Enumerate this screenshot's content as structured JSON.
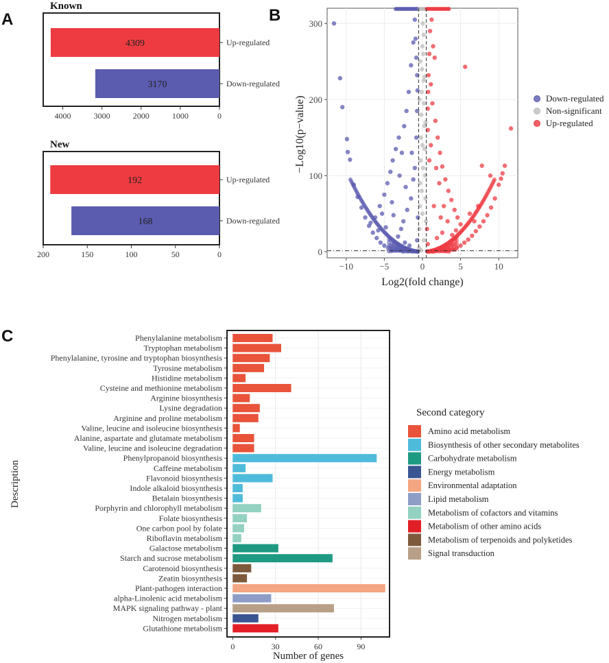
{
  "panel_letters": {
    "a": "A",
    "b": "B",
    "c": "C"
  },
  "colors": {
    "up": "#ee3b41",
    "down": "#5b5bb0",
    "nonsig": "#bdbdbd",
    "grid": "#ececec",
    "frame": "#222222"
  },
  "chart_data": [
    {
      "id": "known",
      "type": "bar",
      "orientation": "horizontal-reversed",
      "title": "Known",
      "categories": [
        "Up-regulated",
        "Down-regulated"
      ],
      "values": [
        4309,
        3170
      ],
      "value_labels": [
        "4309",
        "3170"
      ],
      "xlim": [
        4500,
        0
      ],
      "xticks": [
        4000,
        3000,
        2000,
        1000,
        0
      ],
      "xtick_labels": [
        "4000",
        "3000",
        "2000",
        "1000",
        "0"
      ]
    },
    {
      "id": "new",
      "type": "bar",
      "orientation": "horizontal-reversed",
      "title": "New",
      "categories": [
        "Up-regulated",
        "Down-regulated"
      ],
      "values": [
        192,
        168
      ],
      "value_labels": [
        "192",
        "168"
      ],
      "xlim": [
        200,
        0
      ],
      "xticks": [
        200,
        150,
        100,
        50,
        0
      ],
      "xtick_labels": [
        "200",
        "150",
        "100",
        "50",
        "0"
      ]
    },
    {
      "id": "volcano",
      "type": "scatter",
      "xlabel": "Log2(fold change)",
      "ylabel": "−Log10(p−value)",
      "xlim": [
        -12.5,
        12.5
      ],
      "ylim": [
        -8,
        320
      ],
      "xticks": [
        -10,
        -5,
        0,
        5,
        10
      ],
      "xtick_labels": [
        "−10",
        "−5",
        "0",
        "5",
        "10"
      ],
      "yticks": [
        0,
        100,
        200,
        300
      ],
      "ytick_labels": [
        "0",
        "100",
        "200",
        "300"
      ],
      "thresholds": {
        "x": [
          -0.5,
          0.5
        ],
        "y": 1.3
      },
      "legend": {
        "position": "right",
        "entries": [
          "Down-regulated",
          "Non-significant",
          "Up-regulated"
        ]
      },
      "series": [
        {
          "name": "Down-regulated",
          "points": [
            [
              -11.6,
              300
            ],
            [
              -10.8,
              228
            ],
            [
              -10.5,
              190
            ],
            [
              -9.9,
              148
            ],
            [
              -9.8,
              131
            ],
            [
              -9.5,
              121
            ],
            [
              -9.0,
              88
            ],
            [
              -8.5,
              72
            ],
            [
              -8.0,
              58
            ],
            [
              -7.5,
              45
            ],
            [
              -7.0,
              34
            ],
            [
              -6.5,
              25
            ],
            [
              -6.0,
              18
            ],
            [
              -5.5,
              12
            ],
            [
              -5.0,
              8
            ],
            [
              -4.5,
              5
            ],
            [
              -4.0,
              3
            ],
            [
              -3.5,
              2
            ],
            [
              -3.0,
              1.5
            ],
            [
              -6.2,
              45
            ],
            [
              -5.6,
              60
            ],
            [
              -5.0,
              75
            ],
            [
              -4.6,
              90
            ],
            [
              -4.2,
              105
            ],
            [
              -3.9,
              120
            ],
            [
              -3.5,
              135
            ],
            [
              -3.1,
              150
            ],
            [
              -2.7,
              130
            ],
            [
              -2.4,
              165
            ],
            [
              -2.1,
              185
            ],
            [
              -1.8,
              210
            ],
            [
              -1.5,
              245
            ],
            [
              -1.2,
              275
            ],
            [
              -1.0,
              305
            ],
            [
              -0.9,
              280
            ],
            [
              -0.8,
              255
            ],
            [
              -0.7,
              232
            ],
            [
              -0.65,
              212
            ],
            [
              -2.5,
              40
            ],
            [
              -2.0,
              55
            ],
            [
              -1.5,
              70
            ],
            [
              -1.2,
              95
            ],
            [
              -3.2,
              20
            ],
            [
              -2.8,
              30
            ],
            [
              -4.8,
              32
            ],
            [
              -5.3,
              50
            ],
            [
              -4.0,
              65
            ],
            [
              -1.0,
              110
            ],
            [
              -0.8,
              150
            ],
            [
              -0.7,
              185
            ],
            [
              -1.4,
              130
            ],
            [
              -3.0,
              100
            ],
            [
              -2.2,
              85
            ],
            [
              -0.6,
              45
            ],
            [
              -0.7,
              15
            ],
            [
              -1.7,
              8
            ],
            [
              -2.3,
              12
            ],
            [
              -3.8,
              48
            ],
            [
              -5.8,
              28
            ],
            [
              -6.8,
              38
            ]
          ]
        },
        {
          "name": "Non-significant",
          "points": [
            [
              -0.45,
              5
            ],
            [
              -0.4,
              30
            ],
            [
              -0.35,
              60
            ],
            [
              -0.3,
              90
            ],
            [
              -0.25,
              120
            ],
            [
              -0.2,
              150
            ],
            [
              -0.15,
              180
            ],
            [
              -0.1,
              210
            ],
            [
              -0.05,
              240
            ],
            [
              0.0,
              270
            ],
            [
              0.05,
              300
            ],
            [
              0.1,
              260
            ],
            [
              0.15,
              225
            ],
            [
              0.2,
              195
            ],
            [
              0.25,
              165
            ],
            [
              0.3,
              135
            ],
            [
              0.35,
              100
            ],
            [
              0.4,
              70
            ],
            [
              0.45,
              40
            ],
            [
              0.2,
              15
            ],
            [
              -0.2,
              2
            ],
            [
              0.0,
              50
            ],
            [
              -0.1,
              80
            ],
            [
              0.1,
              110
            ],
            [
              0.3,
              230
            ],
            [
              -0.3,
              250
            ],
            [
              0.0,
              140
            ],
            [
              0.4,
              170
            ],
            [
              -0.4,
              200
            ],
            [
              0.15,
              285
            ]
          ]
        },
        {
          "name": "Up-regulated",
          "points": [
            [
              11.6,
              162
            ],
            [
              10.8,
              113
            ],
            [
              10.5,
              103
            ],
            [
              10.3,
              96
            ],
            [
              10.0,
              88
            ],
            [
              9.5,
              70
            ],
            [
              9.0,
              58
            ],
            [
              8.5,
              48
            ],
            [
              8.0,
              40
            ],
            [
              7.5,
              33
            ],
            [
              7.0,
              27
            ],
            [
              6.5,
              21
            ],
            [
              6.0,
              16
            ],
            [
              5.5,
              12
            ],
            [
              5.0,
              8
            ],
            [
              4.5,
              5
            ],
            [
              4.0,
              3
            ],
            [
              3.5,
              2
            ],
            [
              3.0,
              1.5
            ],
            [
              7.8,
              113
            ],
            [
              5.6,
              243
            ],
            [
              1.4,
              270
            ],
            [
              1.6,
              255
            ],
            [
              1.2,
              305
            ],
            [
              1.0,
              290
            ],
            [
              0.9,
              260
            ],
            [
              0.8,
              232
            ],
            [
              0.75,
              210
            ],
            [
              0.7,
              188
            ],
            [
              1.3,
              195
            ],
            [
              1.7,
              172
            ],
            [
              2.0,
              150
            ],
            [
              2.3,
              130
            ],
            [
              2.6,
              112
            ],
            [
              3.0,
              95
            ],
            [
              3.4,
              80
            ],
            [
              3.8,
              68
            ],
            [
              4.2,
              55
            ],
            [
              4.6,
              45
            ],
            [
              5.0,
              36
            ],
            [
              2.2,
              90
            ],
            [
              1.8,
              110
            ],
            [
              1.1,
              140
            ],
            [
              0.7,
              160
            ],
            [
              2.8,
              60
            ],
            [
              3.3,
              40
            ],
            [
              1.5,
              60
            ],
            [
              0.6,
              30
            ],
            [
              0.7,
              10
            ],
            [
              1.9,
              18
            ],
            [
              2.6,
              25
            ],
            [
              3.9,
              22
            ],
            [
              4.4,
              28
            ],
            [
              6.2,
              50
            ],
            [
              6.8,
              40
            ],
            [
              7.3,
              60
            ],
            [
              8.9,
              100
            ],
            [
              1.1,
              220
            ],
            [
              0.9,
              120
            ],
            [
              2.4,
              45
            ]
          ]
        }
      ]
    },
    {
      "id": "kegg",
      "type": "bar",
      "orientation": "horizontal",
      "xlabel": "Number of genes",
      "ylabel": "Description",
      "xlim": [
        -4,
        110
      ],
      "xticks": [
        0,
        30,
        60,
        90
      ],
      "xtick_labels": [
        "0",
        "30",
        "60",
        "90"
      ],
      "legend": {
        "title": "Second category",
        "position": "right",
        "entries": [
          {
            "name": "Amino acid metabolism",
            "color": "#e8533a"
          },
          {
            "name": "Biosynthesis of other secondary metabolites",
            "color": "#4fbbdb"
          },
          {
            "name": "Carbohydrate metabolism",
            "color": "#1f9a82"
          },
          {
            "name": "Energy metabolism",
            "color": "#3a5591"
          },
          {
            "name": "Environmental adaptation",
            "color": "#f4a582"
          },
          {
            "name": "Lipid metabolism",
            "color": "#8d9dc6"
          },
          {
            "name": "Metabolism of cofactors and vitamins",
            "color": "#93d1c1"
          },
          {
            "name": "Metabolism of other amino acids",
            "color": "#e21f26"
          },
          {
            "name": "Metabolism of terpenoids and polyketides",
            "color": "#7e5a3c"
          },
          {
            "name": "Signal transduction",
            "color": "#b8a088"
          }
        ]
      },
      "categories": [
        "Phenylalanine metabolism",
        "Tryptophan metabolism",
        "Phenylalanine, tyrosine and tryptophan biosynthesis",
        "Tyrosine metabolism",
        "Histidine metabolism",
        "Cysteine and methionine metabolism",
        "Arginine biosynthesis",
        "Lysine degradation",
        "Arginine and proline metabolism",
        "Valine, leucine and isoleucine biosynthesis",
        "Alanine, aspartate and glutamate metabolism",
        "Valine, leucine and isoleucine degradation",
        "Phenylpropanoid biosynthesis",
        "Caffeine metabolism",
        "Flavonoid biosynthesis",
        "Indole alkaloid biosynthesis",
        "Betalain biosynthesis",
        "Porphyrin and chlorophyll metabolism",
        "Folate biosynthesis",
        "One carbon pool by folate",
        "Riboflavin metabolism",
        "Galactose metabolism",
        "Starch and sucrose metabolism",
        "Carotenoid biosynthesis",
        "Zeatin biosynthesis",
        "Plant-pathogen interaction",
        "alpha-Linolenic acid metabolism",
        "MAPK signaling pathway - plant",
        "Nitrogen metabolism",
        "Glutathione metabolism"
      ],
      "values": [
        28,
        34,
        26,
        22,
        9,
        41,
        12,
        19,
        18,
        5,
        15,
        15,
        101,
        9,
        28,
        7,
        7,
        20,
        10,
        8,
        6,
        32,
        70,
        13,
        10,
        107,
        27,
        71,
        18,
        32
      ],
      "category_group": [
        0,
        0,
        0,
        0,
        0,
        0,
        0,
        0,
        0,
        0,
        0,
        0,
        1,
        1,
        1,
        1,
        1,
        6,
        6,
        6,
        6,
        2,
        2,
        8,
        8,
        4,
        5,
        9,
        3,
        7
      ]
    }
  ]
}
